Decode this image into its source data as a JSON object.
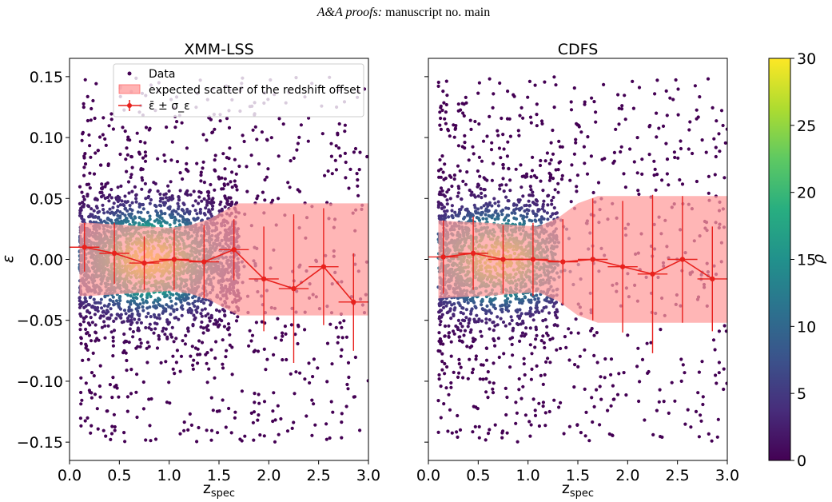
{
  "header": {
    "italic_part": "A&A proofs:",
    "normal_part": " manuscript no. main"
  },
  "colorbar": {
    "label": "ρ",
    "range": [
      0,
      30
    ],
    "ticks": [
      "0",
      "5",
      "10",
      "15",
      "20",
      "25",
      "30"
    ],
    "colormap": "viridis",
    "stops": [
      "#440154",
      "#472d7b",
      "#3b528b",
      "#2c728e",
      "#21918c",
      "#28ae80",
      "#5ec962",
      "#addc30",
      "#fde725"
    ]
  },
  "legend": {
    "placement": "top-right (left panel)",
    "entries": [
      "Data",
      "expected scatter of the redshift offset",
      "ε̄ ± σ_ε"
    ]
  },
  "colors": {
    "band": "#ff9a9a",
    "binned": "#e8211d",
    "low_density": "#440154"
  },
  "panels": [
    {
      "title": "XMM-LSS",
      "ylabel": "ε",
      "xlabel_main": "z",
      "xlabel_sub": "spec"
    },
    {
      "title": "CDFS",
      "ylabel": "",
      "xlabel_main": "z",
      "xlabel_sub": "spec"
    }
  ],
  "axes": {
    "xticks": [
      "0.0",
      "0.5",
      "1.0",
      "1.5",
      "2.0",
      "2.5",
      "3.0"
    ],
    "yticks": [
      "0.15",
      "0.10",
      "0.05",
      "0.00",
      "−0.05",
      "−0.10",
      "−0.15"
    ]
  },
  "chart_data": [
    {
      "type": "scatter",
      "title": "XMM-LSS",
      "xlabel": "z_spec",
      "ylabel": "ε",
      "xlim": [
        0.0,
        3.0
      ],
      "ylim": [
        -0.165,
        0.165
      ],
      "grid": false,
      "scatter_summary": {
        "x_range": [
          0.1,
          3.0
        ],
        "y_range": [
          -0.15,
          0.15
        ],
        "density_peak": {
          "x": 0.8,
          "y": 0.0,
          "rho": 30
        },
        "dense_region": {
          "x": [
            0.1,
            1.7
          ],
          "y": [
            -0.04,
            0.04
          ]
        }
      },
      "band": {
        "name": "expected scatter of the redshift offset",
        "x": [
          0.1,
          0.2,
          0.4,
          0.6,
          0.8,
          1.0,
          1.2,
          1.4,
          1.6,
          1.7,
          3.0
        ],
        "upper": [
          0.03,
          0.03,
          0.029,
          0.028,
          0.027,
          0.026,
          0.028,
          0.033,
          0.042,
          0.046,
          0.046
        ],
        "lower": [
          -0.03,
          -0.03,
          -0.029,
          -0.028,
          -0.027,
          -0.026,
          -0.028,
          -0.033,
          -0.042,
          -0.046,
          -0.046
        ]
      },
      "binned_series": {
        "name": "ε̄ ± σ_ε",
        "x": [
          0.15,
          0.45,
          0.75,
          1.05,
          1.35,
          1.65,
          1.95,
          2.25,
          2.55,
          2.85
        ],
        "y": [
          0.01,
          0.005,
          -0.003,
          0.0,
          -0.002,
          0.008,
          -0.016,
          -0.024,
          -0.006,
          -0.035
        ],
        "yerr": [
          0.02,
          0.025,
          0.022,
          0.025,
          0.03,
          0.025,
          0.043,
          0.061,
          0.048,
          0.04
        ],
        "xerr": [
          0.15,
          0.15,
          0.15,
          0.15,
          0.15,
          0.15,
          0.15,
          0.15,
          0.15,
          0.15
        ]
      }
    },
    {
      "type": "scatter",
      "title": "CDFS",
      "xlabel": "z_spec",
      "ylabel": "",
      "xlim": [
        0.0,
        3.0
      ],
      "ylim": [
        -0.165,
        0.165
      ],
      "grid": false,
      "scatter_summary": {
        "x_range": [
          0.1,
          3.0
        ],
        "y_range": [
          -0.15,
          0.15
        ],
        "density_peak": {
          "x": 0.7,
          "y": 0.0,
          "rho": 28
        },
        "dense_region": {
          "x": [
            0.1,
            1.3
          ],
          "y": [
            -0.03,
            0.03
          ]
        }
      },
      "band": {
        "name": "expected scatter of the redshift offset",
        "x": [
          0.1,
          0.3,
          0.6,
          0.9,
          1.1,
          1.3,
          1.5,
          1.7,
          3.0
        ],
        "upper": [
          0.032,
          0.031,
          0.03,
          0.028,
          0.027,
          0.034,
          0.046,
          0.052,
          0.052
        ],
        "lower": [
          -0.032,
          -0.031,
          -0.03,
          -0.028,
          -0.027,
          -0.034,
          -0.046,
          -0.052,
          -0.052
        ]
      },
      "binned_series": {
        "name": "ε̄ ± σ_ε",
        "x": [
          0.15,
          0.45,
          0.75,
          1.05,
          1.35,
          1.65,
          1.95,
          2.25,
          2.55,
          2.85
        ],
        "y": [
          0.002,
          0.005,
          0.0,
          0.0,
          -0.002,
          0.0,
          -0.006,
          -0.012,
          0.0,
          -0.016
        ],
        "yerr": [
          0.03,
          0.03,
          0.028,
          0.03,
          0.035,
          0.05,
          0.054,
          0.065,
          0.052,
          0.043
        ],
        "xerr": [
          0.15,
          0.15,
          0.15,
          0.15,
          0.15,
          0.15,
          0.15,
          0.15,
          0.15,
          0.15
        ]
      }
    }
  ]
}
